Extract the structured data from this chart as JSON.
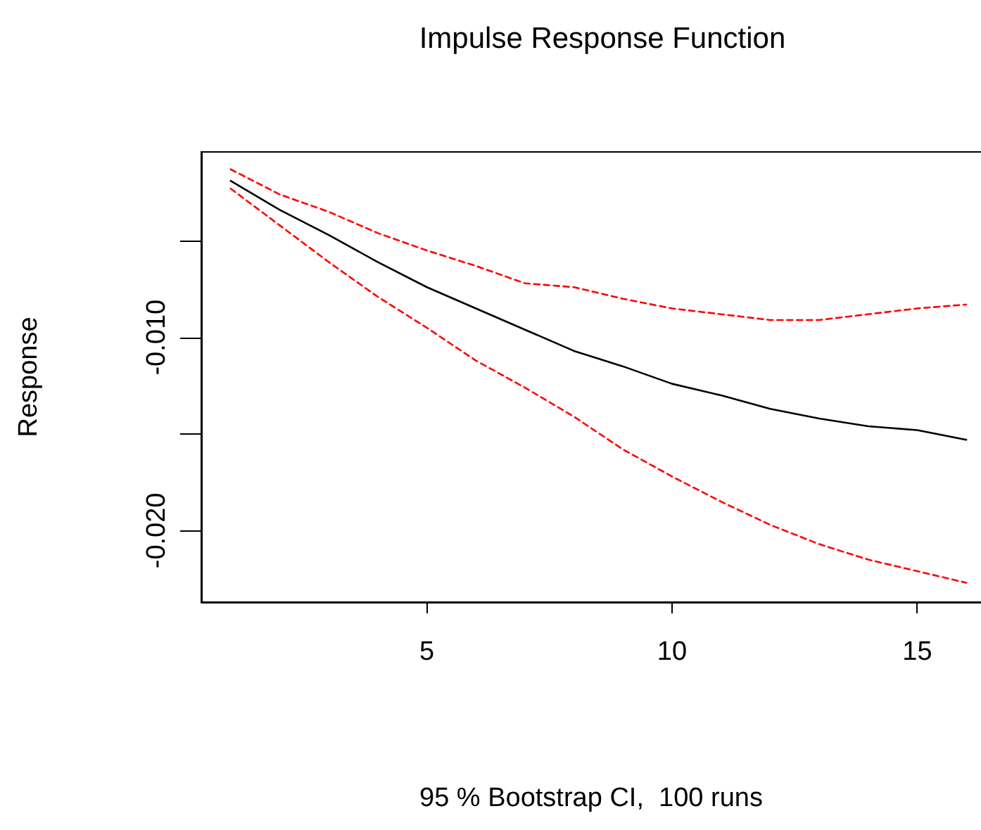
{
  "chart_data": {
    "type": "line",
    "title": "Impulse Response Function",
    "xlabel": "95 % Bootstrap CI,  100 runs",
    "ylabel": "Response",
    "x": [
      1,
      2,
      3,
      4,
      5,
      6,
      7,
      8,
      9,
      10,
      11,
      12,
      13,
      14,
      15,
      16
    ],
    "xlim": [
      0.4,
      16.3
    ],
    "xticks": [
      5,
      10,
      15
    ],
    "ylim": [
      -0.0237,
      -0.0004
    ],
    "yticks": [
      {
        "value": -0.005,
        "label": null
      },
      {
        "value": -0.01,
        "label": "-0.010"
      },
      {
        "value": -0.015,
        "label": null
      },
      {
        "value": -0.02,
        "label": "-0.020"
      }
    ],
    "grid": false,
    "marker": "none",
    "series": [
      {
        "color": "#000000",
        "line_style": "solid",
        "values": [
          -0.0019,
          -0.0034,
          -0.0047,
          -0.0061,
          -0.0074,
          -0.0085,
          -0.0096,
          -0.0107,
          -0.0115,
          -0.0124,
          -0.013,
          -0.0137,
          -0.0142,
          -0.0146,
          -0.0148,
          -0.0153
        ]
      },
      {
        "color": "#ff0000",
        "line_style": "dashed",
        "values": [
          -0.0013,
          -0.0026,
          -0.0035,
          -0.0046,
          -0.0055,
          -0.0063,
          -0.0072,
          -0.0074,
          -0.008,
          -0.0085,
          -0.0088,
          -0.0091,
          -0.0091,
          -0.0088,
          -0.0085,
          -0.0083
        ]
      },
      {
        "color": "#ff0000",
        "line_style": "dashed",
        "values": [
          -0.0023,
          -0.0042,
          -0.0061,
          -0.0079,
          -0.0095,
          -0.0112,
          -0.0126,
          -0.0141,
          -0.0158,
          -0.0172,
          -0.0185,
          -0.0197,
          -0.0207,
          -0.0215,
          -0.0221,
          -0.0227
        ]
      }
    ]
  }
}
